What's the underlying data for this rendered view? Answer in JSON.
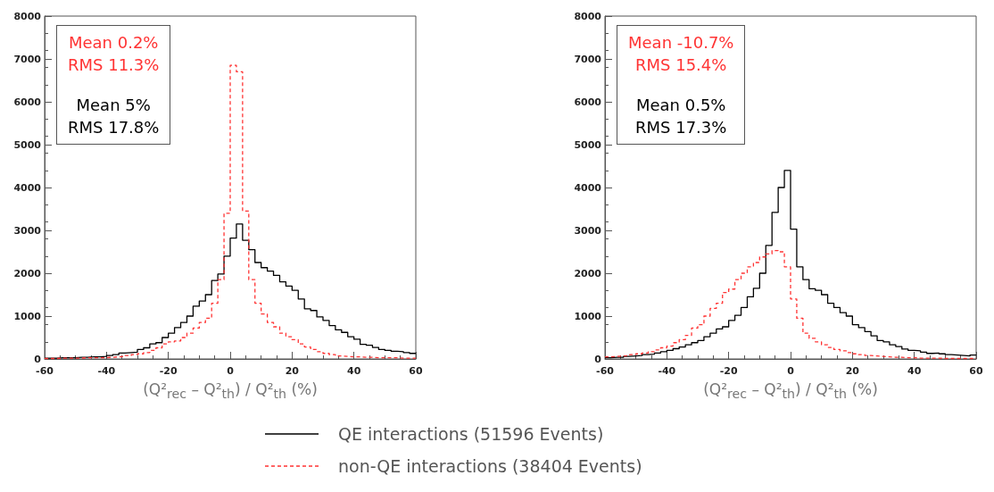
{
  "chart_data": [
    {
      "type": "histogram",
      "xlabel": "(Q²$_{rec}$ – Q²$_{th}$) / Q²$_{th}$  (%)",
      "xlim": [
        -60,
        60
      ],
      "xticks": [
        -60,
        -40,
        -20,
        0,
        20,
        40,
        60
      ],
      "ylim": [
        0,
        8000
      ],
      "yticks": [
        0,
        1000,
        2000,
        3000,
        4000,
        5000,
        6000,
        7000,
        8000
      ],
      "grid": false,
      "legend": "bottom",
      "bins": [
        -60,
        -58,
        -56,
        -54,
        -52,
        -50,
        -48,
        -46,
        -44,
        -42,
        -40,
        -38,
        -36,
        -34,
        -32,
        -30,
        -28,
        -26,
        -24,
        -22,
        -20,
        -18,
        -16,
        -14,
        -12,
        -10,
        -8,
        -6,
        -4,
        -2,
        0,
        2,
        4,
        6,
        8,
        10,
        12,
        14,
        16,
        18,
        20,
        22,
        24,
        26,
        28,
        30,
        32,
        34,
        36,
        38,
        40,
        42,
        44,
        46,
        48,
        50,
        52,
        54,
        56,
        58,
        60
      ],
      "annotations": [
        "Mean 0.2%",
        "RMS 11.3%",
        "Mean 5%",
        "RMS 17.8%"
      ],
      "series": [
        {
          "name": "QE interactions (51596 Events)",
          "color": "#000000",
          "line_style": "solid",
          "values": [
            20,
            20,
            30,
            30,
            30,
            40,
            40,
            50,
            50,
            60,
            80,
            100,
            140,
            150,
            160,
            220,
            260,
            350,
            380,
            500,
            600,
            730,
            850,
            1000,
            1230,
            1350,
            1500,
            1830,
            1980,
            2400,
            2820,
            3150,
            2770,
            2550,
            2250,
            2130,
            2050,
            1950,
            1800,
            1700,
            1600,
            1400,
            1170,
            1130,
            980,
            900,
            780,
            680,
            620,
            520,
            460,
            340,
            320,
            270,
            220,
            200,
            180,
            170,
            150,
            130
          ]
        },
        {
          "name": "non-QE interactions (38404 Events)",
          "color": "#ff3333",
          "line_style": "dashed",
          "values": [
            10,
            10,
            20,
            20,
            20,
            20,
            30,
            30,
            30,
            30,
            40,
            50,
            60,
            80,
            100,
            120,
            150,
            200,
            260,
            350,
            400,
            420,
            500,
            600,
            720,
            850,
            950,
            1300,
            1850,
            3400,
            6850,
            6700,
            3450,
            1850,
            1300,
            1050,
            850,
            750,
            600,
            520,
            450,
            350,
            280,
            220,
            170,
            130,
            100,
            70,
            60,
            50,
            50,
            40,
            40,
            30,
            30,
            30,
            30,
            20,
            20,
            20
          ]
        }
      ]
    },
    {
      "type": "histogram",
      "xlabel": "(Q²$_{rec}$ – Q²$_{th}$) / Q²$_{th}$  (%)",
      "xlim": [
        -60,
        60
      ],
      "xticks": [
        -60,
        -40,
        -20,
        0,
        20,
        40,
        60
      ],
      "ylim": [
        0,
        8000
      ],
      "yticks": [
        0,
        1000,
        2000,
        3000,
        4000,
        5000,
        6000,
        7000,
        8000
      ],
      "grid": false,
      "bins": [
        -60,
        -58,
        -56,
        -54,
        -52,
        -50,
        -48,
        -46,
        -44,
        -42,
        -40,
        -38,
        -36,
        -34,
        -32,
        -30,
        -28,
        -26,
        -24,
        -22,
        -20,
        -18,
        -16,
        -14,
        -12,
        -10,
        -8,
        -6,
        -4,
        -2,
        0,
        2,
        4,
        6,
        8,
        10,
        12,
        14,
        16,
        18,
        20,
        22,
        24,
        26,
        28,
        30,
        32,
        34,
        36,
        38,
        40,
        42,
        44,
        46,
        48,
        50,
        52,
        54,
        56,
        58,
        60
      ],
      "annotations": [
        "Mean -10.7%",
        "RMS 15.4%",
        "Mean 0.5%",
        "RMS 17.3%"
      ],
      "series": [
        {
          "color": "#000000",
          "line_style": "solid",
          "values": [
            30,
            40,
            40,
            60,
            70,
            80,
            100,
            110,
            140,
            170,
            200,
            240,
            280,
            330,
            380,
            430,
            520,
            600,
            700,
            750,
            900,
            1020,
            1200,
            1450,
            1650,
            2000,
            2650,
            3420,
            4000,
            4400,
            3030,
            2150,
            1850,
            1640,
            1600,
            1500,
            1300,
            1200,
            1080,
            1000,
            800,
            730,
            640,
            540,
            430,
            400,
            330,
            290,
            230,
            200,
            190,
            160,
            130,
            140,
            120,
            100,
            90,
            80,
            70,
            90
          ]
        },
        {
          "color": "#ff3333",
          "line_style": "dashed",
          "values": [
            50,
            60,
            70,
            80,
            100,
            120,
            140,
            170,
            210,
            260,
            300,
            380,
            450,
            550,
            720,
            800,
            1000,
            1180,
            1300,
            1550,
            1630,
            1850,
            2000,
            2150,
            2250,
            2380,
            2450,
            2530,
            2500,
            2150,
            1400,
            950,
            600,
            480,
            400,
            330,
            270,
            220,
            190,
            150,
            120,
            100,
            80,
            70,
            60,
            50,
            40,
            40,
            30,
            30,
            20,
            20,
            20,
            20,
            10,
            10,
            10,
            10,
            10,
            10
          ]
        }
      ]
    }
  ]
}
